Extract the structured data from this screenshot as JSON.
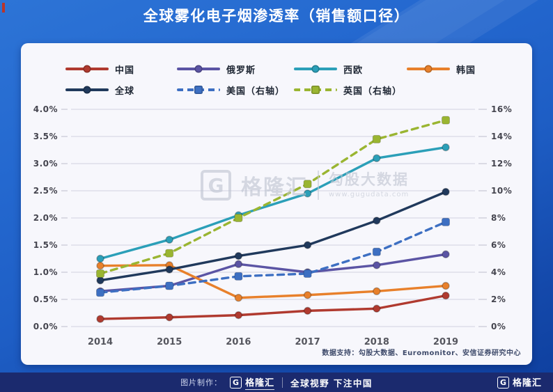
{
  "header": {
    "title": "全球雾化电子烟渗透率（销售额口径）",
    "bg_color": "#2166cb",
    "text_color": "#ffffff"
  },
  "watermark": {
    "logo_letter": "G",
    "brand": "格隆汇",
    "name": "勾股大数据",
    "url": "www.gugudata.com"
  },
  "footnote": "数据支持：勾股大数据、Euromonitor、安信证券研究中心",
  "footer": {
    "made_by_label": "图片制作：",
    "logo_letter": "G",
    "brand": "格隆汇",
    "slogan": "全球视野 下注中国",
    "right_logo_letter": "G",
    "right_brand": "格隆汇",
    "bg_color": "#1b2a6e"
  },
  "chart_data": {
    "type": "line",
    "title": "全球雾化电子烟渗透率（销售额口径）",
    "categories": [
      "2014",
      "2015",
      "2016",
      "2017",
      "2018",
      "2019"
    ],
    "grid": true,
    "legend_position": "top",
    "left_axis": {
      "min": 0,
      "max": 4,
      "step": 0.5,
      "tick_labels": [
        "0.0%",
        "0.5%",
        "1.0%",
        "1.5%",
        "2.0%",
        "2.5%",
        "3.0%",
        "3.5%",
        "4.0%"
      ]
    },
    "right_axis": {
      "min": 0,
      "max": 16,
      "step": 2,
      "tick_labels": [
        "0%",
        "2%",
        "4%",
        "6%",
        "8%",
        "10%",
        "12%",
        "14%",
        "16%"
      ]
    },
    "series": [
      {
        "name": "中国",
        "axis": "left",
        "color": "#b03a2f",
        "style": "solid",
        "marker": "circle",
        "values": [
          0.14,
          0.17,
          0.21,
          0.29,
          0.33,
          0.57
        ]
      },
      {
        "name": "俄罗斯",
        "axis": "left",
        "color": "#5b54a4",
        "style": "solid",
        "marker": "circle",
        "values": [
          0.65,
          0.75,
          1.15,
          1.0,
          1.13,
          1.33
        ]
      },
      {
        "name": "西欧",
        "axis": "left",
        "color": "#2b9fb8",
        "style": "solid",
        "marker": "circle",
        "values": [
          1.25,
          1.6,
          2.05,
          2.45,
          3.1,
          3.3
        ]
      },
      {
        "name": "韩国",
        "axis": "left",
        "color": "#e8802b",
        "style": "solid",
        "marker": "circle",
        "values": [
          1.12,
          1.13,
          0.53,
          0.58,
          0.65,
          0.75
        ]
      },
      {
        "name": "全球",
        "axis": "left",
        "color": "#20395c",
        "style": "solid",
        "marker": "circle",
        "values": [
          0.85,
          1.05,
          1.3,
          1.5,
          1.95,
          2.48
        ]
      },
      {
        "name": "美国（右轴）",
        "axis": "right",
        "color": "#3d6fc2",
        "style": "dashed",
        "marker": "square",
        "values": [
          2.5,
          3.0,
          3.7,
          3.9,
          5.5,
          7.7
        ]
      },
      {
        "name": "英国（右轴）",
        "axis": "right",
        "color": "#9ab531",
        "style": "dashed",
        "marker": "square",
        "values": [
          3.9,
          5.4,
          8.0,
          10.5,
          13.8,
          15.2
        ]
      }
    ]
  }
}
